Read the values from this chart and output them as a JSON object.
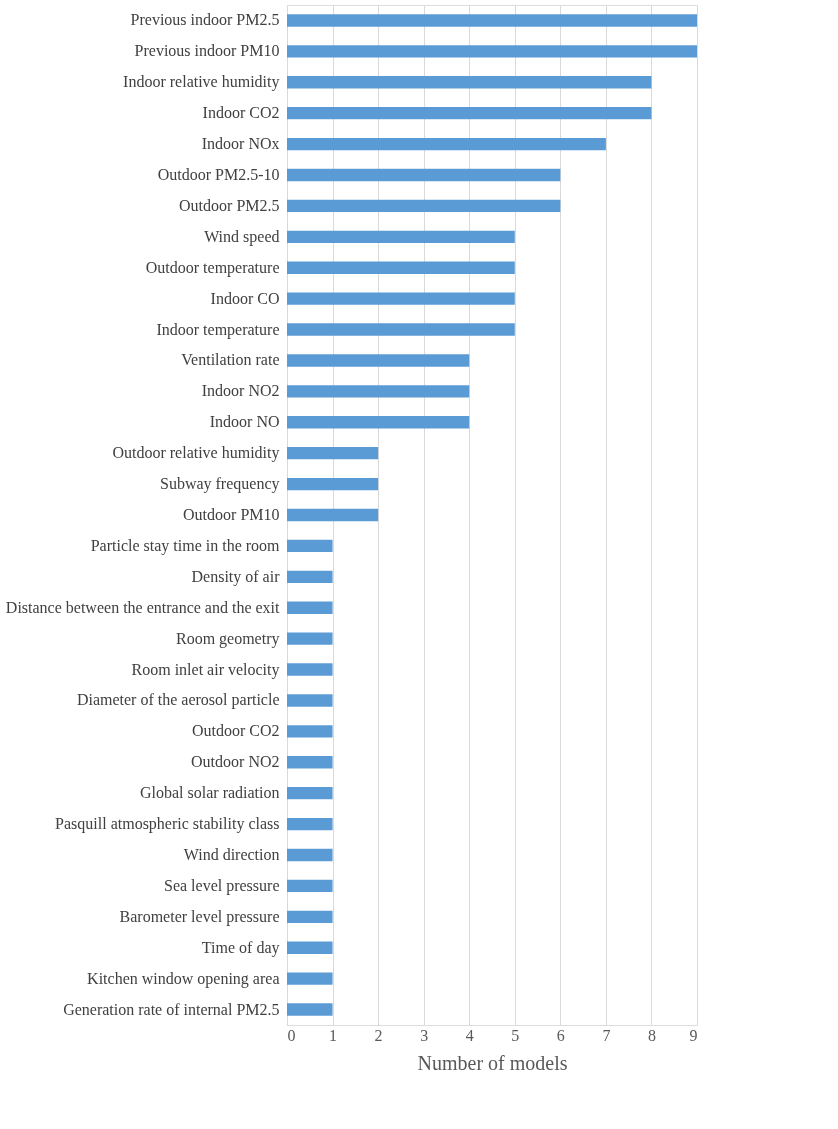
{
  "chart_data": {
    "type": "bar",
    "orientation": "horizontal",
    "xlabel": "Number of models",
    "categories": [
      "Previous indoor PM2.5",
      "Previous indoor PM10",
      "Indoor relative humidity",
      "Indoor CO2",
      "Indoor NOx",
      "Outdoor PM2.5-10",
      "Outdoor PM2.5",
      "Wind speed",
      "Outdoor temperature",
      "Indoor CO",
      "Indoor temperature",
      "Ventilation rate",
      "Indoor NO2",
      "Indoor NO",
      "Outdoor relative humidity",
      "Subway frequency",
      "Outdoor PM10",
      "Particle stay time in the room",
      "Density of air",
      "Distance between the entrance and the exit",
      "Room geometry",
      "Room inlet air velocity",
      "Diameter of the aerosol particle",
      "Outdoor CO2",
      "Outdoor NO2",
      "Global solar radiation",
      "Pasquill atmospheric stability class",
      "Wind direction",
      "Sea level pressure",
      "Barometer level pressure",
      "Time of day",
      "Kitchen window opening area",
      "Generation rate of internal PM2.5"
    ],
    "values": [
      9,
      9,
      8,
      8,
      7,
      6,
      6,
      5,
      5,
      5,
      5,
      4,
      4,
      4,
      2,
      2,
      2,
      1,
      1,
      1,
      1,
      1,
      1,
      1,
      1,
      1,
      1,
      1,
      1,
      1,
      1,
      1,
      1
    ],
    "color": "#5b9bd5",
    "xlim": [
      0,
      9
    ],
    "xticks": [
      0,
      1,
      2,
      3,
      4,
      5,
      6,
      7,
      8,
      9
    ],
    "grid": "x"
  }
}
